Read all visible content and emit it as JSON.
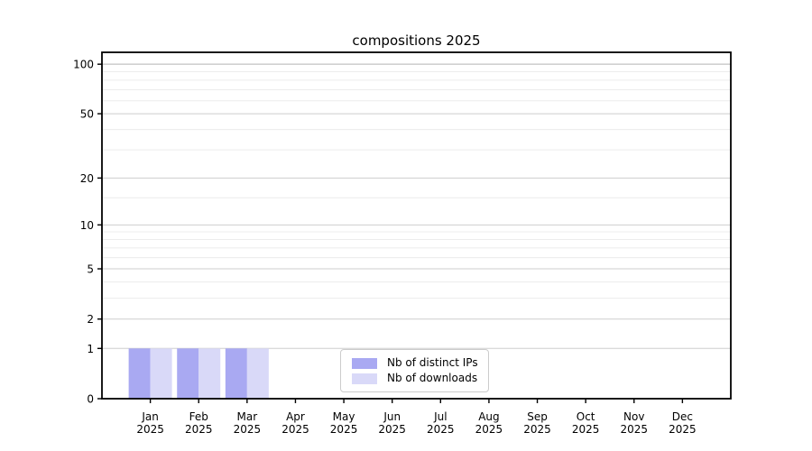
{
  "chart_data": {
    "type": "bar",
    "title": "compositions 2025",
    "categories": [
      "Jan",
      "Feb",
      "Mar",
      "Apr",
      "May",
      "Jun",
      "Jul",
      "Aug",
      "Sep",
      "Oct",
      "Nov",
      "Dec"
    ],
    "category_year": "2025",
    "series": [
      {
        "name": "Nb of distinct IPs",
        "color": "#a9a9f2",
        "values": [
          1,
          1,
          1,
          0,
          0,
          0,
          0,
          0,
          0,
          0,
          0,
          0
        ]
      },
      {
        "name": "Nb of downloads",
        "color": "#d9d9f8",
        "values": [
          1,
          1,
          1,
          0,
          0,
          0,
          0,
          0,
          0,
          0,
          0,
          0
        ]
      }
    ],
    "xlabel": "",
    "ylabel": "",
    "yscale": "log1p",
    "ylim": [
      0,
      118
    ],
    "y_major_ticks": [
      0,
      1,
      2,
      5,
      10,
      20,
      50,
      100
    ],
    "y_minor_ticks": [
      3,
      4,
      6,
      7,
      8,
      9,
      15,
      30,
      40,
      60,
      70,
      80,
      90
    ],
    "grid": "horizontal",
    "legend_position": "bottom-center",
    "colors": {
      "background": "#ffffff",
      "axis": "#000000",
      "text": "#000000",
      "grid_major": "#cecece",
      "grid_minor": "#ececec",
      "grid_top_line": "#b3b3b3",
      "legend_border": "#cccccc"
    }
  }
}
